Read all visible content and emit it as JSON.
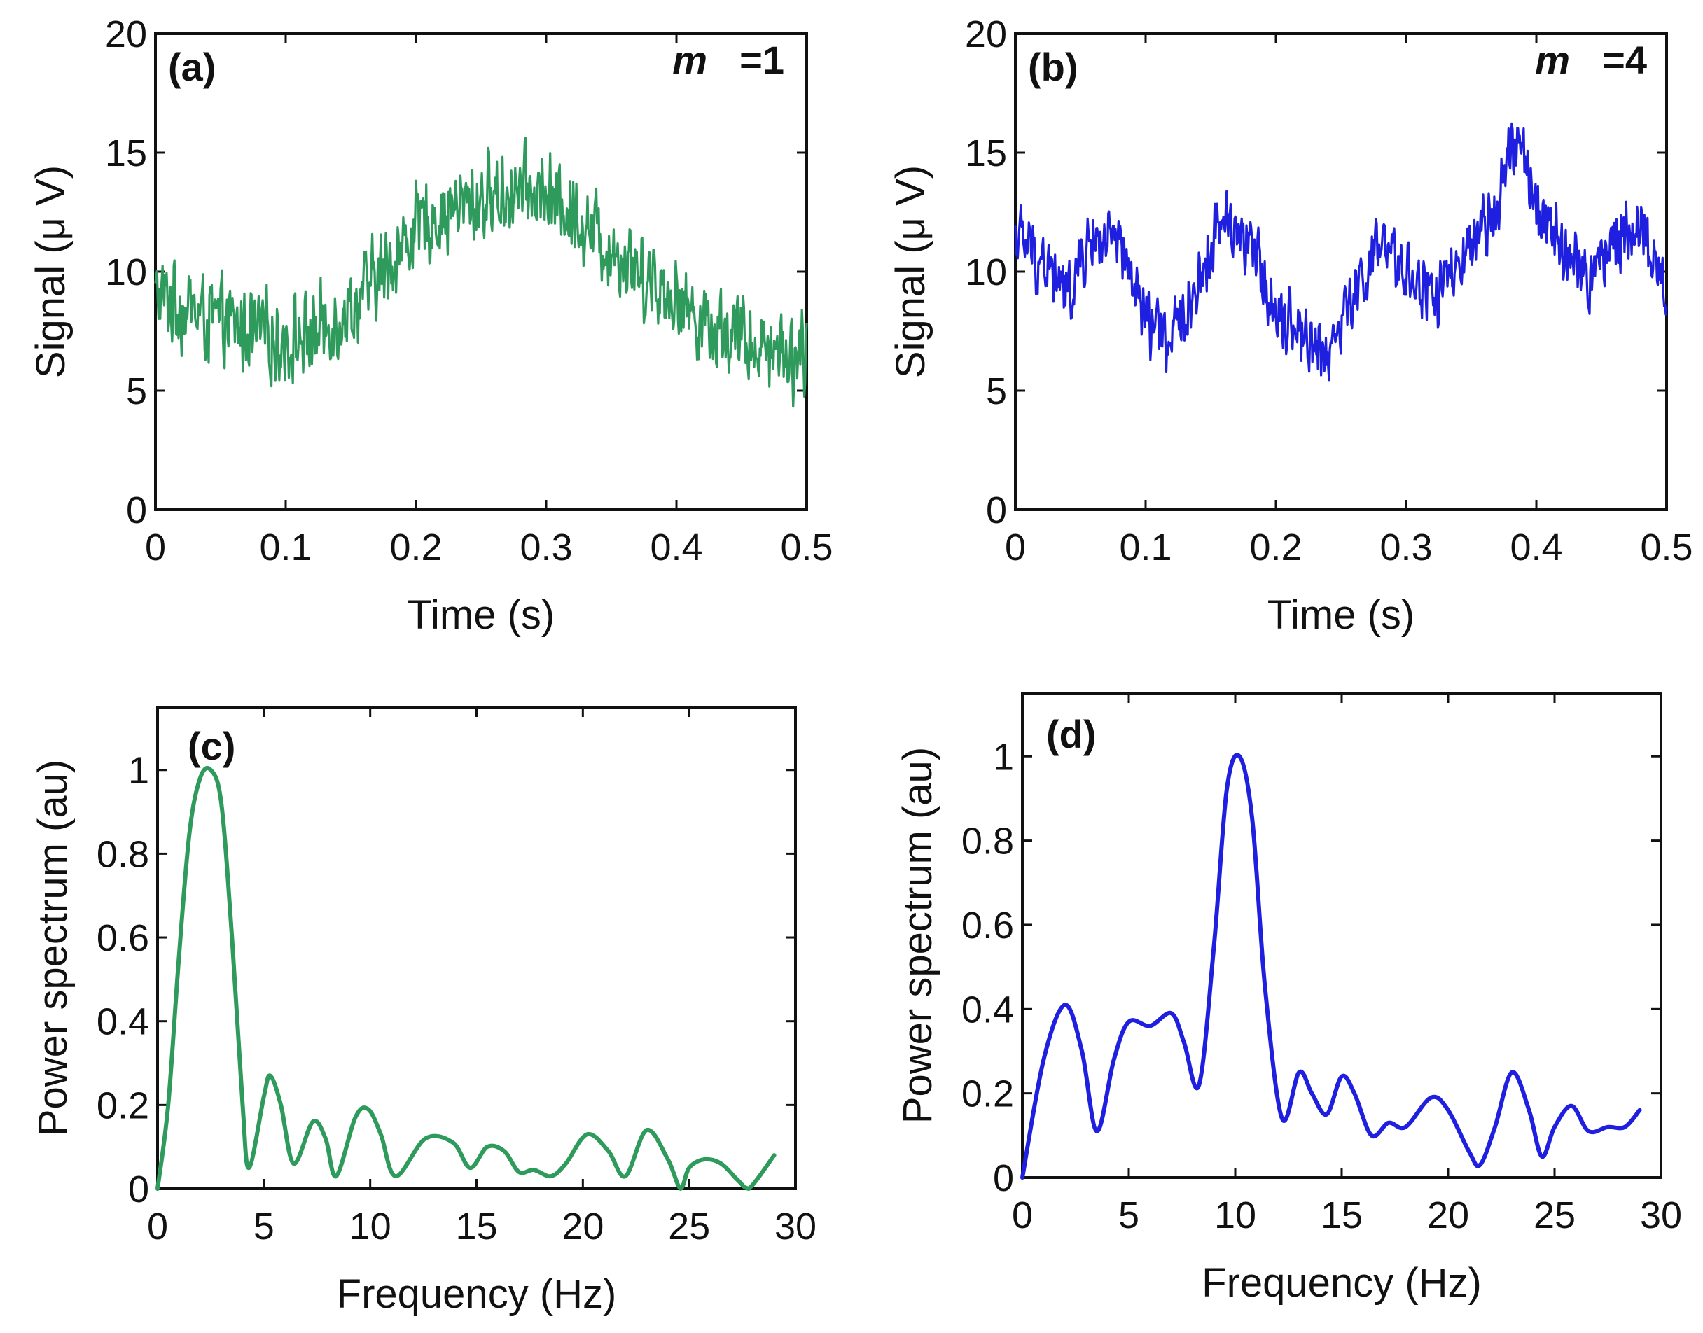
{
  "chart_data": [
    {
      "panel": "(a)",
      "type": "line",
      "annotation": {
        "symbol": "m",
        "value": "=1"
      },
      "xlabel": "Time (s)",
      "ylabel": "Signal (μ V)",
      "xlim": [
        0,
        0.5
      ],
      "ylim": [
        0,
        20
      ],
      "xticks": [
        "0",
        "0.1",
        "0.2",
        "0.3",
        "0.4",
        "0.5"
      ],
      "yticks": [
        "0",
        "5",
        "10",
        "15",
        "20"
      ],
      "grid": false,
      "color": "#2e9a5b",
      "series": [
        {
          "x": [
            0,
            0.025,
            0.05,
            0.075,
            0.1,
            0.125,
            0.15,
            0.175,
            0.2,
            0.225,
            0.25,
            0.275,
            0.3,
            0.325,
            0.35,
            0.375,
            0.4,
            0.425,
            0.45,
            0.475,
            0.5
          ],
          "y": [
            9,
            8.5,
            7.8,
            7.5,
            7,
            7.5,
            8.5,
            10,
            11.8,
            12.6,
            13,
            13.4,
            13.2,
            12.3,
            11,
            10,
            8.8,
            7.8,
            7.2,
            6.8,
            6.5
          ],
          "noise_amplitude": 3.2
        }
      ]
    },
    {
      "panel": "(b)",
      "type": "line",
      "annotation": {
        "symbol": "m",
        "value": "=4"
      },
      "xlabel": "Time (s)",
      "ylabel": "Signal (μ V)",
      "xlim": [
        0,
        0.5
      ],
      "ylim": [
        0,
        20
      ],
      "xticks": [
        "0",
        "0.1",
        "0.2",
        "0.3",
        "0.4",
        "0.5"
      ],
      "yticks": [
        "0",
        "5",
        "10",
        "15",
        "20"
      ],
      "grid": false,
      "color": "#1f1fe0",
      "series": [
        {
          "x": [
            0,
            0.02,
            0.04,
            0.06,
            0.08,
            0.1,
            0.12,
            0.14,
            0.16,
            0.18,
            0.2,
            0.22,
            0.24,
            0.26,
            0.28,
            0.3,
            0.32,
            0.34,
            0.36,
            0.38,
            0.39,
            0.4,
            0.42,
            0.44,
            0.46,
            0.48,
            0.5
          ],
          "y": [
            11.5,
            10.5,
            9,
            11.5,
            11,
            8,
            7,
            9.5,
            12.5,
            11,
            8.5,
            7.5,
            6.5,
            9,
            11,
            10,
            9,
            10,
            11.5,
            15,
            15,
            12.5,
            11,
            9.5,
            11.5,
            12,
            9
          ],
          "noise_amplitude": 2.6
        }
      ]
    },
    {
      "panel": "(c)",
      "type": "line",
      "xlabel": "Frequency (Hz)",
      "ylabel": "Power spectrum (au)",
      "xlim": [
        0,
        30
      ],
      "ylim": [
        0,
        1.15
      ],
      "xticks": [
        "0",
        "5",
        "10",
        "15",
        "20",
        "25",
        "30"
      ],
      "yticks": [
        "0",
        "0.2",
        "0.4",
        "0.6",
        "0.8",
        "1"
      ],
      "grid": false,
      "color": "#2e9a5b",
      "series": [
        {
          "x": [
            0,
            0.5,
            1,
            1.5,
            2,
            2.5,
            3,
            3.5,
            4,
            4.3,
            5,
            5.3,
            5.8,
            6.4,
            7.3,
            7.9,
            8.4,
            9.3,
            9.9,
            10.5,
            11.2,
            12.6,
            13.9,
            14.7,
            15.5,
            16.3,
            17,
            17.7,
            18.5,
            19.2,
            20.2,
            21.2,
            22,
            23,
            24,
            24.6,
            25,
            25.7,
            26.5,
            27.3,
            27.8,
            29
          ],
          "y": [
            0,
            0.2,
            0.55,
            0.85,
            0.98,
            1.0,
            0.92,
            0.6,
            0.2,
            0.05,
            0.22,
            0.27,
            0.2,
            0.06,
            0.16,
            0.12,
            0.03,
            0.17,
            0.19,
            0.13,
            0.03,
            0.12,
            0.11,
            0.05,
            0.1,
            0.09,
            0.04,
            0.045,
            0.03,
            0.06,
            0.13,
            0.09,
            0.03,
            0.14,
            0.07,
            0.0,
            0.05,
            0.07,
            0.06,
            0.02,
            0.0,
            0.08
          ]
        }
      ]
    },
    {
      "panel": "(d)",
      "type": "line",
      "xlabel": "Frequency (Hz)",
      "ylabel": "Power spectrum (au)",
      "xlim": [
        0,
        30
      ],
      "ylim": [
        0,
        1.15
      ],
      "xticks": [
        "0",
        "5",
        "10",
        "15",
        "20",
        "25",
        "30"
      ],
      "yticks": [
        "0",
        "0.2",
        "0.4",
        "0.6",
        "0.8",
        "1"
      ],
      "grid": false,
      "color": "#1f1fe0",
      "series": [
        {
          "x": [
            0,
            1,
            2,
            2.8,
            3.5,
            4.3,
            5,
            6,
            7,
            7.6,
            8.3,
            9,
            9.6,
            10.2,
            10.8,
            11.4,
            12.2,
            13,
            13.6,
            14.3,
            15,
            15.6,
            16.4,
            17.2,
            18,
            19.2,
            20,
            21,
            21.5,
            22.2,
            23,
            23.8,
            24.4,
            25,
            25.8,
            26.6,
            27.5,
            28.3,
            29
          ],
          "y": [
            0,
            0.28,
            0.41,
            0.3,
            0.11,
            0.28,
            0.37,
            0.36,
            0.39,
            0.32,
            0.22,
            0.55,
            0.92,
            1.0,
            0.85,
            0.45,
            0.14,
            0.25,
            0.2,
            0.15,
            0.24,
            0.2,
            0.1,
            0.13,
            0.12,
            0.19,
            0.16,
            0.06,
            0.03,
            0.12,
            0.25,
            0.16,
            0.05,
            0.12,
            0.17,
            0.11,
            0.12,
            0.12,
            0.16
          ]
        }
      ]
    }
  ]
}
